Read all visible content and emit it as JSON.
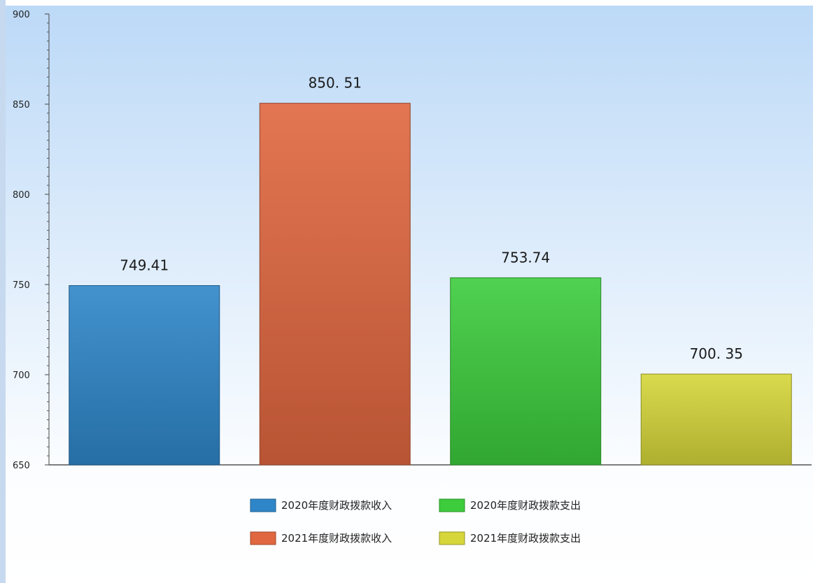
{
  "chart_data": {
    "type": "bar",
    "title": "",
    "xlabel": "",
    "ylabel": "",
    "ylim": [
      650,
      900
    ],
    "yticks": [
      650,
      700,
      750,
      800,
      850,
      900
    ],
    "grid": false,
    "legend_position": "bottom",
    "series": [
      {
        "name": "2020年度财政拨款收入",
        "value": 749.41,
        "label": "749.41",
        "color": "#2e86c9"
      },
      {
        "name": "2021年度财政拨款收入",
        "value": 850.51,
        "label": "850. 51",
        "color": "#e0673f"
      },
      {
        "name": "2020年度财政拨款支出",
        "value": 753.74,
        "label": "753.74",
        "color": "#3ccc3c"
      },
      {
        "name": "2021年度财政拨款支出",
        "value": 700.35,
        "label": "700. 35",
        "color": "#d6d63a"
      }
    ],
    "legend_order": [
      0,
      2,
      1,
      3
    ]
  }
}
